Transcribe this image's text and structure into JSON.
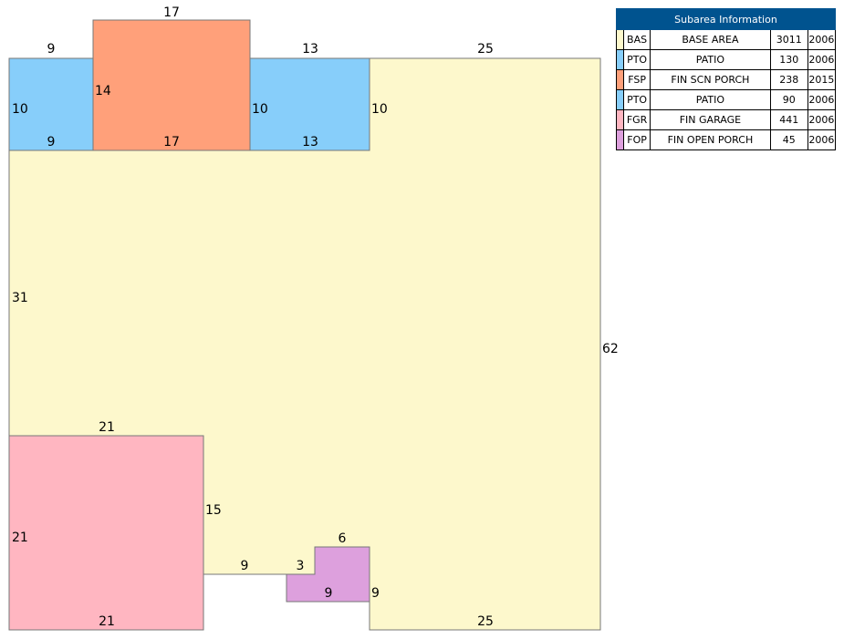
{
  "legend": {
    "title": "Subarea Information",
    "rows": [
      {
        "code": "BAS",
        "desc": "BASE AREA",
        "area": "3011",
        "year": "2006",
        "color": "#fdf8cc"
      },
      {
        "code": "PTO",
        "desc": "PATIO",
        "area": "130",
        "year": "2006",
        "color": "#87cefa"
      },
      {
        "code": "FSP",
        "desc": "FIN SCN PORCH",
        "area": "238",
        "year": "2015",
        "color": "#ffa07a"
      },
      {
        "code": "PTO",
        "desc": "PATIO",
        "area": "90",
        "year": "2006",
        "color": "#87cefa"
      },
      {
        "code": "FGR",
        "desc": "FIN GARAGE",
        "area": "441",
        "year": "2006",
        "color": "#ffb6c1"
      },
      {
        "code": "FOP",
        "desc": "FIN OPEN PORCH",
        "area": "45",
        "year": "2006",
        "color": "#dda0dd"
      }
    ]
  },
  "dimensions": {
    "pto1_top": "9",
    "pto1_side": "10",
    "pto1_bottom": "9",
    "fsp_top": "17",
    "fsp_side": "14",
    "fsp_bottom": "17",
    "pto2_top": "13",
    "pto2_left": "10",
    "pto2_right": "10",
    "pto2_bottom": "13",
    "bas_top": "25",
    "bas_right": "62",
    "bas_left": "31",
    "bas_bottom": "25",
    "fgr_top": "21",
    "fgr_left": "21",
    "fgr_right": "15",
    "fgr_bottom": "21",
    "notch_bottom": "9",
    "fop_step": "3",
    "fop_top": "6",
    "fop_bottom": "9",
    "fop_right": "9"
  }
}
